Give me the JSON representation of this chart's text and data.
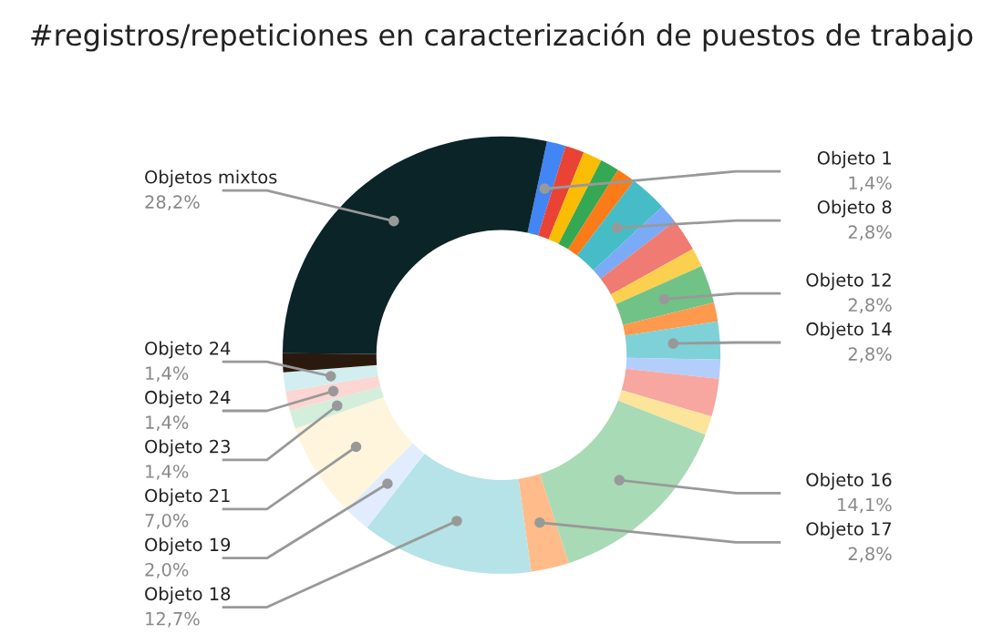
{
  "chart_data": {
    "type": "donut",
    "title": "#registros/repeticiones en caracterización de puestos de trabajo",
    "categories": [
      "Objeto 1",
      null,
      null,
      null,
      null,
      "Objeto 8",
      null,
      null,
      null,
      "Objeto 12",
      null,
      "Objeto 14",
      null,
      null,
      null,
      "Objeto 16",
      "Objeto 17",
      "Objeto 18",
      "Objeto 19",
      "Objeto 21",
      "Objeto 23",
      "Objeto 24",
      "Objeto 24",
      null,
      "Objetos mixtos"
    ],
    "values": [
      1.4,
      1.4,
      1.4,
      1.4,
      1.4,
      2.8,
      1.4,
      2.4,
      1.4,
      2.8,
      1.4,
      2.8,
      1.4,
      2.8,
      1.4,
      14.1,
      2.8,
      12.7,
      2.0,
      7.0,
      1.4,
      1.4,
      1.4,
      1.4,
      28.2
    ],
    "value_labels": [
      "1,4%",
      null,
      null,
      null,
      null,
      "2,8%",
      null,
      null,
      null,
      "2,8%",
      null,
      "2,8%",
      null,
      null,
      null,
      "14,1%",
      "2,8%",
      "12,7%",
      "2,0%",
      "7,0%",
      "1,4%",
      "1,4%",
      "1,4%",
      null,
      "28,2%"
    ],
    "colors": [
      "#4285f4",
      "#ea4335",
      "#fbbc04",
      "#34a853",
      "#fa7b17",
      "#46bdc6",
      "#7baaf7",
      "#f07b72",
      "#fcd04f",
      "#71c287",
      "#ff994d",
      "#7ed1d7",
      "#b3cefb",
      "#f7a7a0",
      "#fde49b",
      "#a8dab5",
      "#ffbc8a",
      "#b5e3e8",
      "#e1edfe",
      "#fff5dc",
      "#d3eedb",
      "#fbd6d2",
      "#d2eef0",
      "#2a1a0e",
      "#0b2428"
    ]
  }
}
